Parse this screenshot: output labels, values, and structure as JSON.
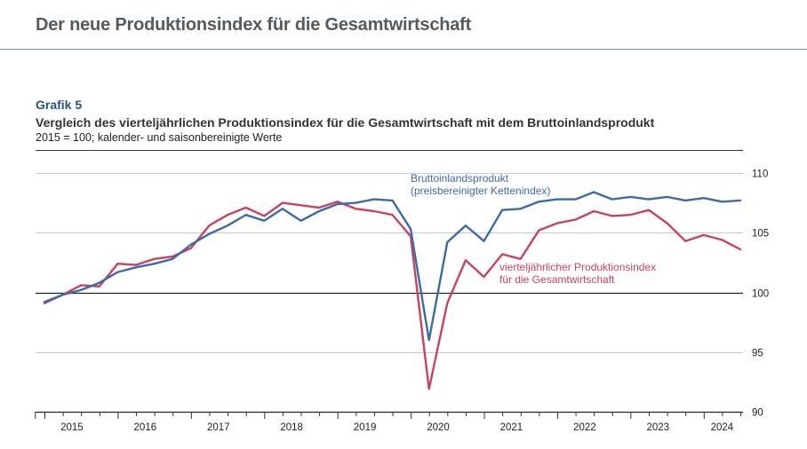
{
  "header": {
    "title": "Der neue Produktionsindex für die Gesamtwirtschaft"
  },
  "figure": {
    "label": "Grafik 5",
    "title": "Vergleich des vierteljährlichen Produktionsindex für die Gesamtwirtschaft mit dem Bruttoinlandsprodukt",
    "subtitle": "2015 = 100; kalender- und saisonbereinigte Werte"
  },
  "chart_data": {
    "type": "line",
    "x": [
      "2015 Q1",
      "2015 Q2",
      "2015 Q3",
      "2015 Q4",
      "2016 Q1",
      "2016 Q2",
      "2016 Q3",
      "2016 Q4",
      "2017 Q1",
      "2017 Q2",
      "2017 Q3",
      "2017 Q4",
      "2018 Q1",
      "2018 Q2",
      "2018 Q3",
      "2018 Q4",
      "2019 Q1",
      "2019 Q2",
      "2019 Q3",
      "2019 Q4",
      "2020 Q1",
      "2020 Q2",
      "2020 Q3",
      "2020 Q4",
      "2021 Q1",
      "2021 Q2",
      "2021 Q3",
      "2021 Q4",
      "2022 Q1",
      "2022 Q2",
      "2022 Q3",
      "2022 Q4",
      "2023 Q1",
      "2023 Q2",
      "2023 Q3",
      "2023 Q4",
      "2024 Q1",
      "2024 Q2",
      "2024 Q3"
    ],
    "year_labels": [
      "2015",
      "2016",
      "2017",
      "2018",
      "2019",
      "2020",
      "2021",
      "2022",
      "2023",
      "2024"
    ],
    "series": [
      {
        "name": "Bruttoinlandsprodukt",
        "label_lines": [
          "Bruttoinlandsprodukt",
          "(preisbereinigter Kettenindex)"
        ],
        "color": "#3e6aa8",
        "values": [
          99.2,
          99.8,
          100.2,
          100.8,
          101.7,
          102.1,
          102.4,
          102.8,
          104.0,
          104.9,
          105.6,
          106.5,
          106.0,
          107.0,
          106.0,
          106.8,
          107.4,
          107.5,
          107.8,
          107.7,
          105.3,
          96.0,
          104.2,
          105.6,
          104.3,
          106.9,
          107.0,
          107.6,
          107.8,
          107.8,
          108.4,
          107.8,
          108.0,
          107.8,
          108.0,
          107.7,
          107.9,
          107.6,
          107.7
        ]
      },
      {
        "name": "vierteljährlicher Produktionsindex für die Gesamtwirtschaft",
        "label_lines": [
          "vierteljährlicher Produktionsindex",
          "für die Gesamtwirtschaft"
        ],
        "color": "#c8435f",
        "values": [
          99.1,
          99.8,
          100.6,
          100.5,
          102.4,
          102.3,
          102.8,
          103.0,
          103.7,
          105.6,
          106.5,
          107.1,
          106.4,
          107.5,
          107.3,
          107.1,
          107.6,
          107.0,
          106.8,
          106.5,
          104.7,
          91.9,
          99.1,
          102.7,
          101.3,
          103.2,
          102.8,
          105.2,
          105.8,
          106.1,
          106.8,
          106.4,
          106.5,
          106.9,
          105.8,
          104.3,
          104.8,
          104.4,
          103.6
        ]
      }
    ],
    "ylim": [
      90,
      110
    ],
    "yticks": [
      90,
      95,
      100,
      105,
      110
    ],
    "reference_line": 100,
    "xlabel": "",
    "ylabel": ""
  }
}
